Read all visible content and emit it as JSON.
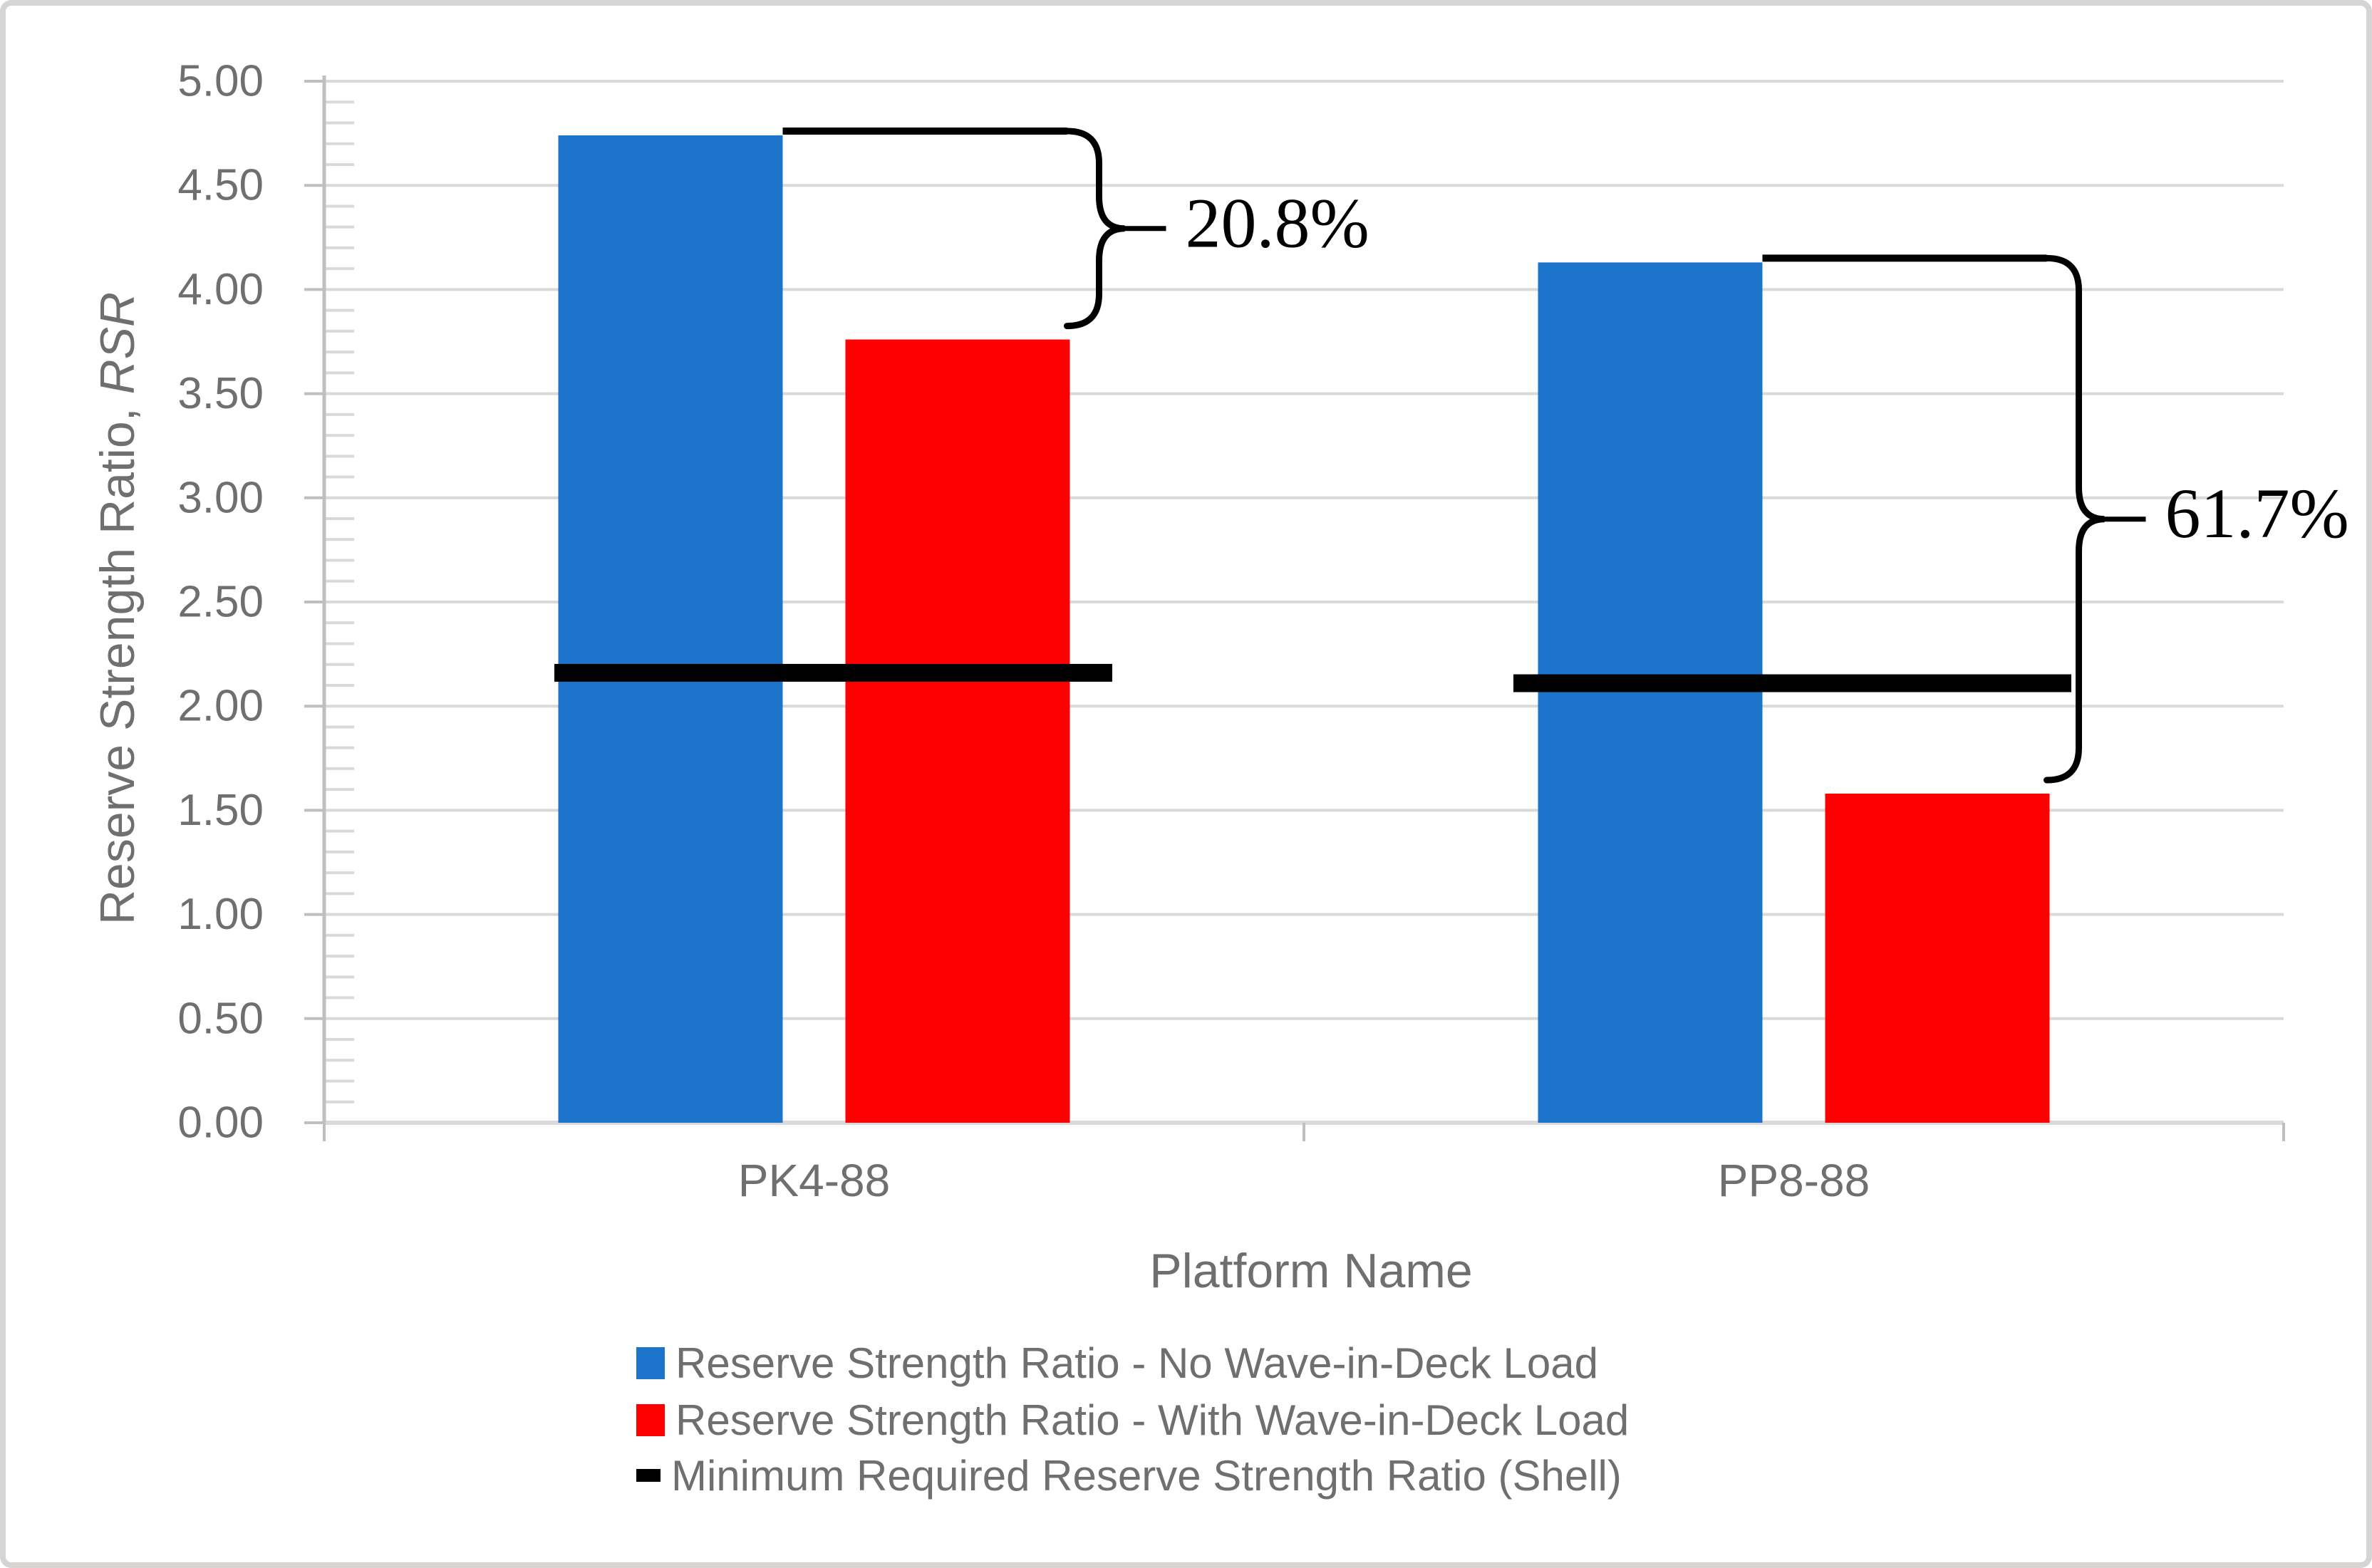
{
  "chart_data": {
    "type": "bar",
    "title": "",
    "xlabel": "Platform Name",
    "ylabel_prefix": "Reserve Strength Ratio, ",
    "ylabel_italic": "RSR",
    "categories": [
      "PK4-88",
      "PP8-88"
    ],
    "series": [
      {
        "name": "Reserve Strength Ratio - No Wave-in-Deck Load",
        "marker": "rect",
        "color": "#1C74CB",
        "values": [
          4.74,
          4.13
        ]
      },
      {
        "name": "Reserve Strength Ratio - With Wave-in-Deck Load",
        "marker": "rect",
        "color": "#FF0000",
        "values": [
          3.76,
          1.58
        ]
      },
      {
        "name": "Minimum Required Reserve Strength Ratio (Shell)",
        "marker": "dash",
        "color": "#000000",
        "values": [
          2.16,
          2.11
        ]
      }
    ],
    "annotations": [
      {
        "category": "PK4-88",
        "label": "20.8%"
      },
      {
        "category": "PP8-88",
        "label": "61.7%"
      }
    ],
    "ylim": [
      0,
      5
    ],
    "ytick_step": 0.5,
    "ytick_decimals": 2,
    "yminor_step": 0.1,
    "grid": true,
    "legend_position": "bottom"
  },
  "colors": {
    "bar_blue": "#1C74CB",
    "bar_red": "#FF0000",
    "annotation_black": "#000000",
    "gridline": "#D9D9D9",
    "axis": "#BFBFBF",
    "text_gray": "#6F6F6F",
    "frame_border": "#D7D5D3",
    "background": "#FFFFFF"
  }
}
